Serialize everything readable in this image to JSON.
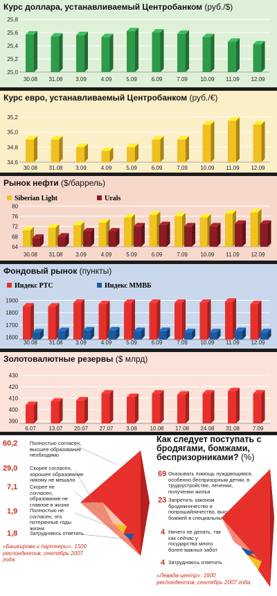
{
  "chart_data": [
    {
      "type": "bar",
      "title": "Курс доллара, устанавливаемый Центробанком",
      "unit": "(руб./$)",
      "categories": [
        "30.08",
        "31.08",
        "3.09",
        "4.09",
        "5.09",
        "6.09",
        "7.09",
        "10.09",
        "11.09",
        "12.09"
      ],
      "series": [
        {
          "values": [
            25.57,
            25.54,
            25.56,
            25.53,
            25.62,
            25.6,
            25.58,
            25.53,
            25.46,
            25.42
          ]
        }
      ],
      "yticks": [
        "25,0",
        "25,2",
        "25,4",
        "25,6",
        "25,8"
      ],
      "ylim": [
        25.0,
        25.8
      ],
      "colors": {
        "bar": "#2e9a4a",
        "bar_dark": "#1e6e34",
        "bg": "#dff0d8"
      }
    },
    {
      "type": "bar",
      "title": "Курс евро, устанавливаемый Центробанком",
      "unit": "(руб./€)",
      "categories": [
        "30.08",
        "31.08",
        "3.09",
        "4.09",
        "5.09",
        "6.09",
        "7.09",
        "10.09",
        "11.09",
        "12.09"
      ],
      "series": [
        {
          "values": [
            34.9,
            34.9,
            34.8,
            34.75,
            34.8,
            34.9,
            34.9,
            35.1,
            35.15,
            35.1
          ]
        }
      ],
      "yticks": [
        "34,6",
        "34,8",
        "35,0",
        "35,2"
      ],
      "ylim": [
        34.6,
        35.3
      ],
      "colors": {
        "bar": "#f0c020",
        "bar_dark": "#b88a10",
        "bg": "#fbefc8"
      }
    },
    {
      "type": "bar",
      "title": "Рынок нефти",
      "unit": "($/баррель)",
      "categories": [
        "30.08",
        "31.08",
        "3.09",
        "4.09",
        "5.09",
        "6.09",
        "7.09",
        "10.09",
        "11.09",
        "12.09"
      ],
      "series": [
        {
          "name": "Siberian Light",
          "values": [
            70.5,
            71.5,
            72.5,
            73.5,
            75.5,
            76.5,
            76,
            75.5,
            77,
            77.5
          ]
        },
        {
          "name": "Urals",
          "values": [
            67.5,
            68,
            70,
            70,
            72,
            72.5,
            72,
            72,
            73,
            73
          ]
        }
      ],
      "yticks": [
        "64",
        "68",
        "72",
        "76",
        "80"
      ],
      "ylim": [
        64,
        82
      ],
      "colors": {
        "s1": "#f1c31e",
        "s1_dark": "#b68d10",
        "s2": "#8c1c24",
        "s2_dark": "#5a0f15",
        "bg": "#f7d9cc"
      }
    },
    {
      "type": "bar",
      "title": "Фондовый рынок",
      "unit": "(пункты)",
      "categories": [
        "30.08",
        "31.08",
        "3.09",
        "4.09",
        "5.09",
        "6.09",
        "7.09",
        "10.09",
        "11.09",
        "12.09"
      ],
      "series": [
        {
          "name": "Индекс РТС",
          "values": [
            1850,
            1850,
            1880,
            1870,
            1880,
            1880,
            1880,
            1880,
            1890,
            1870
          ]
        },
        {
          "name": "Индекс ММВБ",
          "values": [
            1640,
            1650,
            1655,
            1655,
            1650,
            1650,
            1640,
            1640,
            1650,
            1640
          ]
        }
      ],
      "yticks": [
        "1600",
        "1700",
        "1800",
        "1900"
      ],
      "ylim": [
        1580,
        1920
      ],
      "colors": {
        "s1": "#e7302c",
        "s1_dark": "#a81e1c",
        "s2": "#1c5aa0",
        "s2_dark": "#0f3a6e",
        "bg": "#c9d8ec"
      }
    },
    {
      "type": "bar",
      "title": "Золотовалютные резервы",
      "unit": "($ млрд)",
      "categories": [
        "6.07",
        "13.07",
        "20.07",
        "27.07",
        "3.08",
        "10.08",
        "17.08",
        "24.08",
        "31.08",
        "7.09"
      ],
      "series": [
        {
          "values": [
            404,
            407,
            408,
            414,
            411,
            414,
            413,
            414,
            416,
            414
          ]
        }
      ],
      "yticks": [
        "390",
        "400",
        "410",
        "420",
        "430"
      ],
      "ylim": [
        388,
        432
      ],
      "colors": {
        "bar": "#e8302c",
        "bar_dark": "#a81e1c",
        "bg": "#fbe3da"
      }
    },
    {
      "type": "pie",
      "title": "",
      "labels": [
        "Полностью согласен, высшее образование необходимо",
        "Скорее согласен, хорошее образование никому не мешало",
        "Скорее не согласен, образование не главное в жизни",
        "Полностью не согласен, это потерянные годы жизни",
        "Затрудняюсь ответить"
      ],
      "values": [
        60.2,
        29.0,
        7.1,
        1.9,
        1.8
      ],
      "value_labels": [
        "60,2",
        "29,0",
        "7,1",
        "1,9",
        "1,8"
      ],
      "source": "«Башкирова и партнеры». 1500 респондентов, сентябрь 2007 года."
    },
    {
      "type": "pie",
      "title": "Как следует поступать с бродягами, бомжами, беспризорниками?",
      "unit": "(%)",
      "labels": [
        "Оказывать помощь нуждающимся, особенно беспризорным детям, в трудоустройстве, лечении, получении жилья",
        "Запретить законом бродяжничество и попрошайничество, высылать бомжей в специальные лагеря",
        "Ничего не делать, так как сейчас у государства много более важных забот",
        "Затрудняюсь ответить"
      ],
      "values": [
        69,
        23,
        4,
        4
      ],
      "value_labels": [
        "69",
        "23",
        "4",
        "4"
      ],
      "source": "«Левада-центр». 1600 респондентов, сентябрь 2007 года."
    }
  ]
}
